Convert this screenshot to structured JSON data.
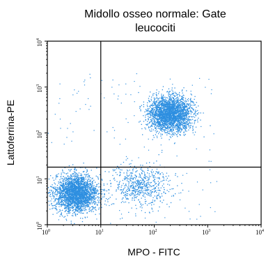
{
  "chart_data": {
    "type": "scatter",
    "title_lines": [
      "Midollo osseo normale: Gate",
      "leucociti"
    ],
    "xlabel": "MPO - FITC",
    "ylabel": "Lattoferrina-PE",
    "x_scale": "log",
    "y_scale": "log",
    "xlim": [
      1,
      10000
    ],
    "ylim": [
      1,
      10000
    ],
    "x_ticks": [
      {
        "base": "10",
        "exp": "0",
        "value": 1
      },
      {
        "base": "10",
        "exp": "1",
        "value": 10
      },
      {
        "base": "10",
        "exp": "2",
        "value": 100
      },
      {
        "base": "10",
        "exp": "3",
        "value": 1000
      },
      {
        "base": "10",
        "exp": "4",
        "value": 10000
      }
    ],
    "y_ticks": [
      {
        "base": "10",
        "exp": "0",
        "value": 1
      },
      {
        "base": "10",
        "exp": "1",
        "value": 10
      },
      {
        "base": "10",
        "exp": "2",
        "value": 100
      },
      {
        "base": "10",
        "exp": "3",
        "value": 1000
      },
      {
        "base": "10",
        "exp": "4",
        "value": 10000
      }
    ],
    "gates": {
      "x": 10,
      "y": 18
    },
    "grid": false,
    "point_color": "#2e8fe0",
    "populations": [
      {
        "x_center": 3.5,
        "y_center": 4.8,
        "x_spread_log": 0.2,
        "y_spread_log": 0.2,
        "density": "high"
      },
      {
        "x_center": 200,
        "y_center": 260,
        "x_spread_log": 0.2,
        "y_spread_log": 0.19,
        "density": "high"
      },
      {
        "x_center": 55,
        "y_center": 7,
        "x_spread_log": 0.27,
        "y_spread_log": 0.22,
        "density": "medium"
      }
    ]
  }
}
